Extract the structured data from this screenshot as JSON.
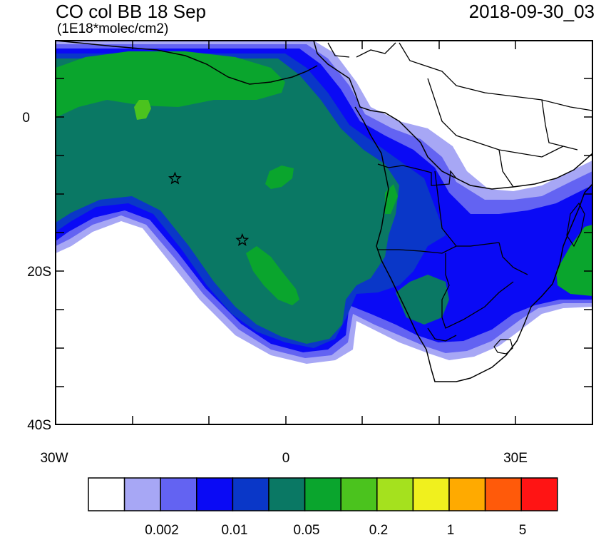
{
  "header": {
    "title": "CO col BB 18 Sep",
    "units": "(1E18*molec/cm2)",
    "datetime": "2018-09-30_03"
  },
  "axes": {
    "lat_labels": [
      "0",
      "20S",
      "40S"
    ],
    "lon_labels": [
      "30W",
      "0",
      "30E"
    ]
  },
  "colorbar": {
    "colors": [
      "#ffffff",
      "#a7a7f5",
      "#6363f2",
      "#0a0af5",
      "#0a37c8",
      "#0a7864",
      "#0aa52d",
      "#4bc31e",
      "#a5e11e",
      "#f0f01e",
      "#ffaa00",
      "#ff5a0a",
      "#ff1414"
    ],
    "labels": [
      "0.002",
      "0.01",
      "0.05",
      "0.2",
      "1",
      "5"
    ]
  },
  "markers": [
    {
      "name": "star-1",
      "lon": -14.5,
      "lat": -8.0
    },
    {
      "name": "star-2",
      "lon": -5.7,
      "lat": -16.0
    }
  ]
}
